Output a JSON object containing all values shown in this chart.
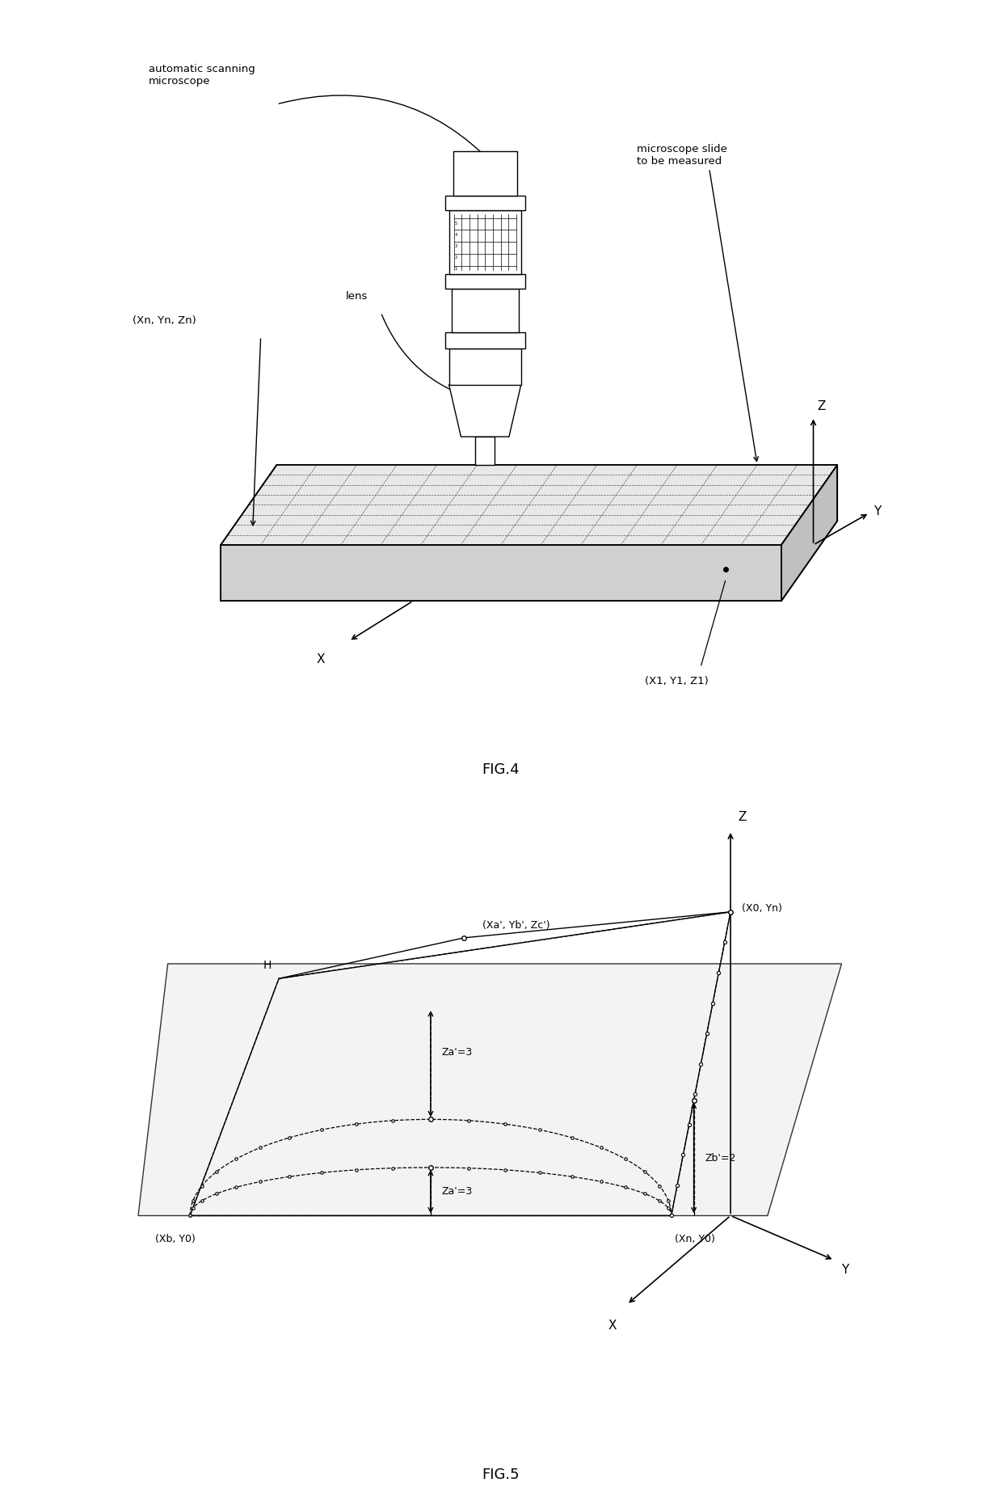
{
  "fig4": {
    "title": "FIG.4",
    "labels": {
      "auto_scan": "automatic scanning\nmicroscope",
      "lens": "lens",
      "slide": "microscope slide\nto be measured",
      "coord_n": "(Xn, Yn, Zn)",
      "coord_1": "(X1, Y1, Z1)",
      "X": "X",
      "Y": "Y",
      "Z": "Z"
    }
  },
  "fig5": {
    "title": "FIG.5",
    "labels": {
      "H": "H",
      "coord_ab": "(Xa', Yb', Zc')",
      "coord_x0yn": "(X0, Yn)",
      "coord_xbY0": "(Xb, Y0)",
      "coord_xnY0": "(Xn, Y0)",
      "Za3_top": "Za'=3",
      "Za3_bot": "Za'=3",
      "Zb2": "Zb'=2",
      "X": "X",
      "Y": "Y",
      "Z": "Z"
    }
  },
  "colors": {
    "black": "#000000",
    "white": "#ffffff",
    "light_gray": "#e8e8e8",
    "mid_gray": "#d0d0d0",
    "dark_gray": "#c0c0c0",
    "plane_fill": "#f0f0f0",
    "bg": "#ffffff",
    "grid_line": "#555555"
  }
}
